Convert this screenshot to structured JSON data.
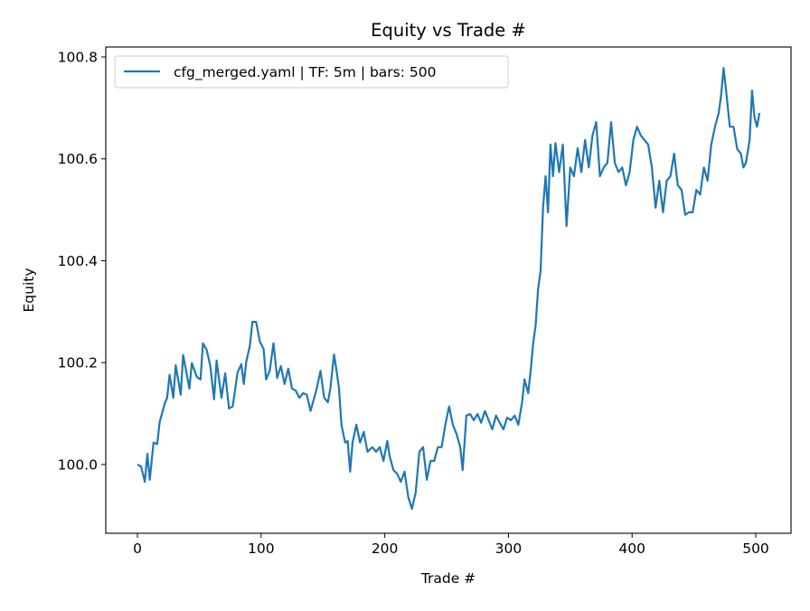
{
  "chart_data": {
    "type": "line",
    "title": "Equity vs Trade #",
    "xlabel": "Trade #",
    "ylabel": "Equity",
    "xlim": [
      -25.6,
      528.5
    ],
    "ylim": [
      99.865,
      100.8195
    ],
    "xticks": [
      0,
      100,
      200,
      300,
      400,
      500
    ],
    "xtick_labels": [
      "0",
      "100",
      "200",
      "300",
      "400",
      "500"
    ],
    "yticks": [
      100.0,
      100.2,
      100.4,
      100.6,
      100.8
    ],
    "ytick_labels": [
      "100.0",
      "100.2",
      "100.4",
      "100.6",
      "100.8"
    ],
    "grid": false,
    "legend_position": "top-left",
    "series": [
      {
        "name": "cfg_merged.yaml | TF: 5m | bars: 500",
        "color": "#1f77b4",
        "x": [
          0,
          3,
          6,
          8,
          10,
          13,
          16,
          18,
          22,
          24,
          26,
          29,
          31,
          35,
          37,
          42,
          44,
          48,
          51,
          53,
          56,
          59,
          62,
          64,
          68,
          71,
          74,
          77,
          81,
          84,
          86,
          88,
          91,
          93,
          96,
          99,
          102,
          104,
          107,
          110,
          113,
          116,
          119,
          122,
          125,
          128,
          131,
          134,
          137,
          140,
          143,
          145,
          148,
          151,
          154,
          156,
          159,
          161,
          163,
          165,
          168,
          170,
          172,
          174,
          177,
          180,
          183,
          186,
          190,
          193,
          196,
          199,
          202,
          204,
          207,
          210,
          213,
          216,
          219,
          222,
          225,
          228,
          231,
          234,
          237,
          240,
          243,
          246,
          249,
          252,
          255,
          258,
          261,
          263,
          266,
          269,
          272,
          275,
          278,
          281,
          284,
          287,
          290,
          293,
          296,
          299,
          302,
          305,
          308,
          311,
          313,
          316,
          318,
          320,
          322,
          324,
          326,
          328,
          330,
          332,
          334,
          336,
          338,
          341,
          344,
          347,
          350,
          353,
          356,
          359,
          362,
          365,
          368,
          371,
          374,
          377,
          380,
          383,
          386,
          389,
          392,
          395,
          398,
          401,
          404,
          407,
          410,
          413,
          416,
          419,
          422,
          425,
          428,
          431,
          434,
          437,
          440,
          443,
          446,
          449,
          452,
          455,
          458,
          461,
          464,
          467,
          470,
          472,
          474,
          476,
          479,
          482,
          485,
          488,
          490,
          492,
          495,
          497,
          499,
          501,
          503
        ],
        "y": [
          100.0,
          99.996,
          99.966,
          100.021,
          99.97,
          100.043,
          100.04,
          100.083,
          100.119,
          100.131,
          100.176,
          100.131,
          100.195,
          100.137,
          100.215,
          100.149,
          100.199,
          100.172,
          100.167,
          100.238,
          100.225,
          100.193,
          100.128,
          100.204,
          100.131,
          100.179,
          100.11,
          100.114,
          100.181,
          100.197,
          100.158,
          100.202,
          100.234,
          100.28,
          100.28,
          100.241,
          100.227,
          100.167,
          100.184,
          100.238,
          100.17,
          100.193,
          100.158,
          100.188,
          100.149,
          100.145,
          100.131,
          100.14,
          100.137,
          100.105,
          100.131,
          100.149,
          100.184,
          100.131,
          100.122,
          100.149,
          100.216,
          100.184,
          100.149,
          100.078,
          100.043,
          100.046,
          99.986,
          100.043,
          100.078,
          100.043,
          100.064,
          100.025,
          100.034,
          100.025,
          100.034,
          100.007,
          100.046,
          100.016,
          99.989,
          99.982,
          99.966,
          99.986,
          99.936,
          99.913,
          99.945,
          100.025,
          100.034,
          99.97,
          100.007,
          100.007,
          100.034,
          100.034,
          100.078,
          100.114,
          100.078,
          100.06,
          100.034,
          99.989,
          100.096,
          100.099,
          100.087,
          100.099,
          100.082,
          100.105,
          100.087,
          100.069,
          100.096,
          100.082,
          100.069,
          100.092,
          100.087,
          100.096,
          100.078,
          100.122,
          100.167,
          100.14,
          100.184,
          100.238,
          100.273,
          100.344,
          100.38,
          100.504,
          100.566,
          100.495,
          100.628,
          100.566,
          100.631,
          100.574,
          100.628,
          100.468,
          100.583,
          100.566,
          100.621,
          100.574,
          100.637,
          100.583,
          100.646,
          100.672,
          100.566,
          100.583,
          100.592,
          100.672,
          100.592,
          100.574,
          100.583,
          100.548,
          100.574,
          100.637,
          100.663,
          100.646,
          100.637,
          100.628,
          100.583,
          100.504,
          100.557,
          100.495,
          100.557,
          100.566,
          100.61,
          100.548,
          100.539,
          100.49,
          100.495,
          100.495,
          100.539,
          100.53,
          100.583,
          100.557,
          100.628,
          100.663,
          100.69,
          100.725,
          100.778,
          100.734,
          100.663,
          100.663,
          100.619,
          100.61,
          100.583,
          100.592,
          100.637,
          100.734,
          100.681,
          100.663,
          100.69
        ]
      }
    ]
  }
}
